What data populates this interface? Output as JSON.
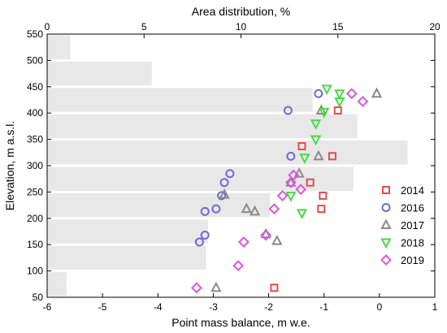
{
  "chart_data": {
    "type": "scatter",
    "title": "",
    "xlabel": "Point mass balance, m w.e.",
    "ylabel": "Elevation, m a.s.l.",
    "x2label": "Area distribution, %",
    "xlim": [
      -6,
      1
    ],
    "ylim": [
      50,
      550
    ],
    "x2lim": [
      0,
      20
    ],
    "x_ticks": [
      "-6",
      "-5",
      "-4",
      "-3",
      "-2",
      "-1",
      "0",
      "1"
    ],
    "y_ticks": [
      "50",
      "100",
      "150",
      "200",
      "250",
      "300",
      "350",
      "400",
      "450",
      "500",
      "550"
    ],
    "x2_ticks": [
      "0",
      "5",
      "10",
      "15",
      "20"
    ],
    "grid": false,
    "legend_position": "right",
    "area_bars": {
      "band_width": 50,
      "color": "#e8e8e8",
      "bands": [
        {
          "bottom": 50,
          "top": 100,
          "value": 1.0
        },
        {
          "bottom": 100,
          "top": 150,
          "value": 8.2
        },
        {
          "bottom": 150,
          "top": 200,
          "value": 8.3
        },
        {
          "bottom": 200,
          "top": 250,
          "value": 11.5
        },
        {
          "bottom": 250,
          "top": 300,
          "value": 15.8
        },
        {
          "bottom": 300,
          "top": 350,
          "value": 18.6
        },
        {
          "bottom": 350,
          "top": 400,
          "value": 16.0
        },
        {
          "bottom": 400,
          "top": 450,
          "value": 13.7
        },
        {
          "bottom": 450,
          "top": 500,
          "value": 5.4
        },
        {
          "bottom": 500,
          "top": 550,
          "value": 1.2
        }
      ]
    },
    "series": [
      {
        "name": "2014",
        "marker": "square",
        "color": "#e84a4a",
        "points": [
          [
            -1.9,
            68
          ],
          [
            -1.05,
            218
          ],
          [
            -1.02,
            243
          ],
          [
            -1.25,
            268
          ],
          [
            -0.85,
            318
          ],
          [
            -1.4,
            337
          ],
          [
            -0.75,
            405
          ]
        ]
      },
      {
        "name": "2016",
        "marker": "circle",
        "color": "#6b6bd6",
        "points": [
          [
            -3.25,
            155
          ],
          [
            -3.15,
            168
          ],
          [
            -2.95,
            218
          ],
          [
            -3.15,
            213
          ],
          [
            -2.85,
            243
          ],
          [
            -2.8,
            268
          ],
          [
            -2.7,
            285
          ],
          [
            -1.6,
            318
          ],
          [
            -1.65,
            405
          ],
          [
            -1.1,
            437
          ]
        ]
      },
      {
        "name": "2017",
        "marker": "triangle-up",
        "color": "#8a8a8a",
        "points": [
          [
            -2.95,
            68
          ],
          [
            -1.85,
            157
          ],
          [
            -2.05,
            170
          ],
          [
            -2.4,
            218
          ],
          [
            -2.25,
            213
          ],
          [
            -2.8,
            245
          ],
          [
            -1.6,
            268
          ],
          [
            -1.45,
            285
          ],
          [
            -1.1,
            318
          ],
          [
            -1.05,
            405
          ],
          [
            -0.05,
            437
          ]
        ]
      },
      {
        "name": "2018",
        "marker": "triangle-down",
        "color": "#44dd44",
        "points": [
          [
            -1.4,
            210
          ],
          [
            -1.6,
            243
          ],
          [
            -1.35,
            315
          ],
          [
            -1.15,
            350
          ],
          [
            -1.15,
            380
          ],
          [
            -1.0,
            402
          ],
          [
            -0.72,
            422
          ],
          [
            -0.72,
            437
          ],
          [
            -0.95,
            446
          ]
        ]
      },
      {
        "name": "2019",
        "marker": "diamond",
        "color": "#dd55dd",
        "points": [
          [
            -3.3,
            68
          ],
          [
            -2.55,
            110
          ],
          [
            -2.45,
            155
          ],
          [
            -2.05,
            168
          ],
          [
            -1.9,
            218
          ],
          [
            -1.75,
            243
          ],
          [
            -1.6,
            268
          ],
          [
            -1.42,
            255
          ],
          [
            -1.55,
            282
          ],
          [
            -0.3,
            422
          ],
          [
            -0.5,
            437
          ]
        ]
      }
    ]
  }
}
